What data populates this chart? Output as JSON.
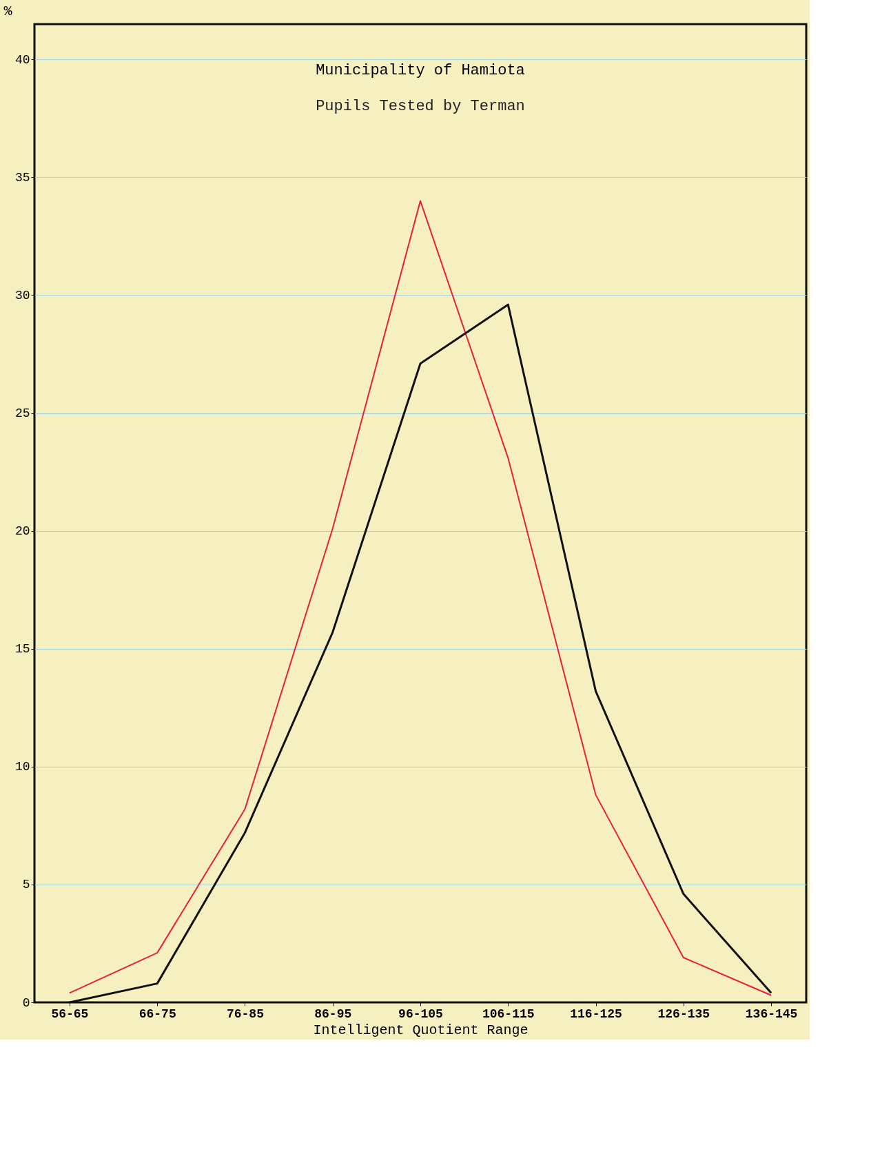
{
  "chart_data": {
    "type": "line",
    "title": "Municipality of Hamiota",
    "subtitle": "Pupils Tested by Terman",
    "xlabel": "Intelligent Quotient Range",
    "ylabel": "%",
    "categories": [
      "56-65",
      "66-75",
      "76-85",
      "86-95",
      "96-105",
      "106-115",
      "116-125",
      "126-135",
      "136-145"
    ],
    "series": [
      {
        "color": "#e8203a",
        "values": [
          0.4,
          2.1,
          8.2,
          20.1,
          34.0,
          23.1,
          8.8,
          1.9,
          0.3
        ]
      },
      {
        "color": "#111111",
        "values": [
          0,
          0.8,
          7.2,
          15.7,
          27.1,
          29.6,
          13.2,
          4.6,
          0.4
        ]
      }
    ],
    "ylim": [
      0,
      41.5
    ],
    "yticks": [
      0,
      5,
      10,
      15,
      20,
      25,
      30,
      35,
      40
    ],
    "grid": true,
    "marker": "none",
    "line_style": "solid"
  }
}
